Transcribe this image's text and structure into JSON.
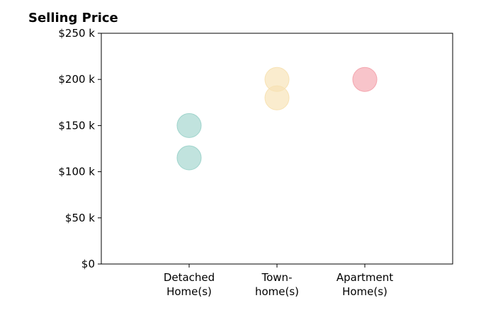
{
  "chart_data": {
    "type": "scatter",
    "title": "Selling Price",
    "categories": [
      "Detached\nHome(s)",
      "Town-\nhome(s)",
      "Apartment\nHome(s)"
    ],
    "series": [
      {
        "color": "#9fd4cc",
        "category": 0,
        "values": [
          150000,
          115000
        ]
      },
      {
        "color": "#f7e2b4",
        "category": 1,
        "values": [
          200000,
          180000
        ]
      },
      {
        "color": "#f4a5ae",
        "category": 2,
        "values": [
          200000
        ]
      }
    ],
    "ylim": [
      0,
      250000
    ],
    "yticks": [
      0,
      50000,
      100000,
      150000,
      200000,
      250000
    ],
    "ytick_labels": [
      "$0",
      "$50 k",
      "$100 k",
      "$150 k",
      "$200 k",
      "$250 k"
    ],
    "grid": false,
    "legend": "none"
  }
}
